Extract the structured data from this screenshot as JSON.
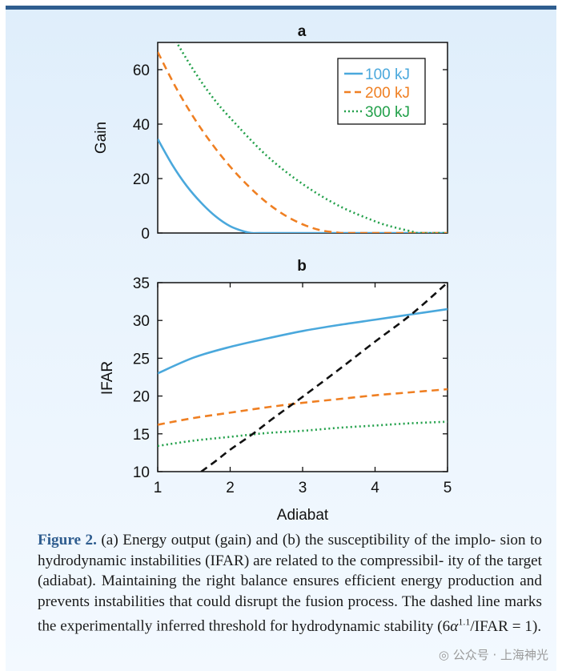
{
  "figure": {
    "label": "Figure 2.",
    "caption_lines": [
      "(a) Energy output (gain) and (b) the susceptibility of the implo-",
      "sion to hydrodynamic instabilities (IFAR) are related to the compressibil-",
      "ity of the target (adiabat). Maintaining the right balance ensures efficient",
      "energy production and prevents instabilities that could disrupt the fusion",
      "process. The dashed line marks the experimentally inferred threshold for",
      "hydrodynamic stability (6α<sup>1.1</sup>/IFAR = 1)."
    ],
    "caption_line1_rest": "(a) Energy output (gain) and (b) the susceptibility of the implo-",
    "caption_line2": "sion to hydrodynamic instabilities (IFAR) are related to the compressibil-",
    "caption_line3": "ity of the target (adiabat). Maintaining the right balance ensures efficient",
    "caption_line4": "energy production and prevents instabilities that could disrupt the fusion",
    "caption_line5": "process. The dashed line marks the experimentally inferred threshold for",
    "caption_line6_pre": "hydrodynamic stability (6",
    "caption_alpha": "α",
    "caption_exp": "1.1",
    "caption_line6_post": "/IFAR = 1)."
  },
  "watermark": "公众号 · 上海神光",
  "colors": {
    "100kJ": "#4aa8dc",
    "200kJ": "#ef7f22",
    "300kJ": "#22a04a",
    "threshold": "#111111",
    "accent": "#2f5d8f"
  },
  "chart_data": [
    {
      "panel": "a",
      "type": "line",
      "title": "a",
      "xlabel": "",
      "ylabel": "Gain",
      "xlim": [
        1,
        5
      ],
      "ylim": [
        0,
        70
      ],
      "yticks": [
        0,
        20,
        40,
        60
      ],
      "legend": {
        "position": "top-right",
        "entries": [
          "100 kJ",
          "200 kJ",
          "300 kJ"
        ]
      },
      "series": [
        {
          "name": "100 kJ",
          "style": "solid",
          "color_key": "100kJ",
          "x": [
            1.0,
            1.2,
            1.4,
            1.6,
            1.8,
            2.0,
            2.2,
            2.3,
            2.4,
            3.0,
            4.0,
            5.0
          ],
          "y": [
            34.5,
            25.1,
            17.3,
            11.1,
            6.1,
            2.5,
            0.5,
            0,
            0,
            0,
            0,
            0
          ]
        },
        {
          "name": "200 kJ",
          "style": "dashed",
          "color_key": "200kJ",
          "x": [
            1.0,
            1.25,
            1.5,
            1.75,
            2.0,
            2.25,
            2.5,
            2.75,
            3.0,
            3.25,
            3.5,
            3.6,
            4.0,
            5.0
          ],
          "y": [
            66.5,
            53.5,
            42.3,
            32.7,
            24.4,
            17.3,
            11.3,
            6.6,
            3.2,
            1.0,
            0.1,
            0,
            0,
            0
          ]
        },
        {
          "name": "300 kJ",
          "style": "dotted",
          "color_key": "300kJ",
          "x": [
            1.25,
            1.5,
            1.75,
            2.0,
            2.5,
            3.0,
            3.5,
            4.0,
            4.25,
            4.5,
            4.6,
            5.0
          ],
          "y": [
            70.5,
            59.6,
            50.1,
            42.3,
            28.5,
            18.0,
            10.0,
            4.3,
            2.2,
            0.6,
            0,
            0
          ]
        }
      ]
    },
    {
      "panel": "b",
      "type": "line",
      "title": "b",
      "xlabel": "Adiabat",
      "ylabel": "IFAR",
      "xlim": [
        1,
        5
      ],
      "ylim": [
        10,
        35
      ],
      "xticks": [
        1,
        2,
        3,
        4,
        5
      ],
      "yticks": [
        10,
        15,
        20,
        25,
        30,
        35
      ],
      "series": [
        {
          "name": "100 kJ",
          "style": "solid",
          "color_key": "100kJ",
          "x": [
            1.0,
            1.5,
            2.0,
            2.5,
            3.0,
            3.5,
            4.0,
            4.5,
            5.0
          ],
          "y": [
            23.0,
            25.1,
            26.5,
            27.6,
            28.6,
            29.4,
            30.1,
            30.8,
            31.5
          ]
        },
        {
          "name": "200 kJ",
          "style": "dashed",
          "color_key": "200kJ",
          "x": [
            1.0,
            1.5,
            2.0,
            2.5,
            3.0,
            3.5,
            4.0,
            4.5,
            5.0
          ],
          "y": [
            16.2,
            17.1,
            17.8,
            18.5,
            19.1,
            19.6,
            20.1,
            20.5,
            20.9
          ]
        },
        {
          "name": "300 kJ",
          "style": "dotted",
          "color_key": "300kJ",
          "x": [
            1.0,
            1.5,
            2.0,
            2.5,
            3.0,
            3.5,
            4.0,
            4.5,
            5.0
          ],
          "y": [
            13.4,
            14.1,
            14.6,
            15.1,
            15.4,
            15.8,
            16.1,
            16.4,
            16.6
          ]
        },
        {
          "name": "Threshold (6α^1.1/IFAR = 1)",
          "style": "dashed",
          "color_key": "threshold",
          "x": [
            1.6,
            1.8,
            2.0,
            2.3,
            2.6,
            3.0,
            3.5,
            4.0,
            4.5,
            5.0
          ],
          "y": [
            10.0,
            11.4,
            12.9,
            14.9,
            17.1,
            19.9,
            23.5,
            27.2,
            30.8,
            35.0
          ]
        }
      ]
    }
  ]
}
